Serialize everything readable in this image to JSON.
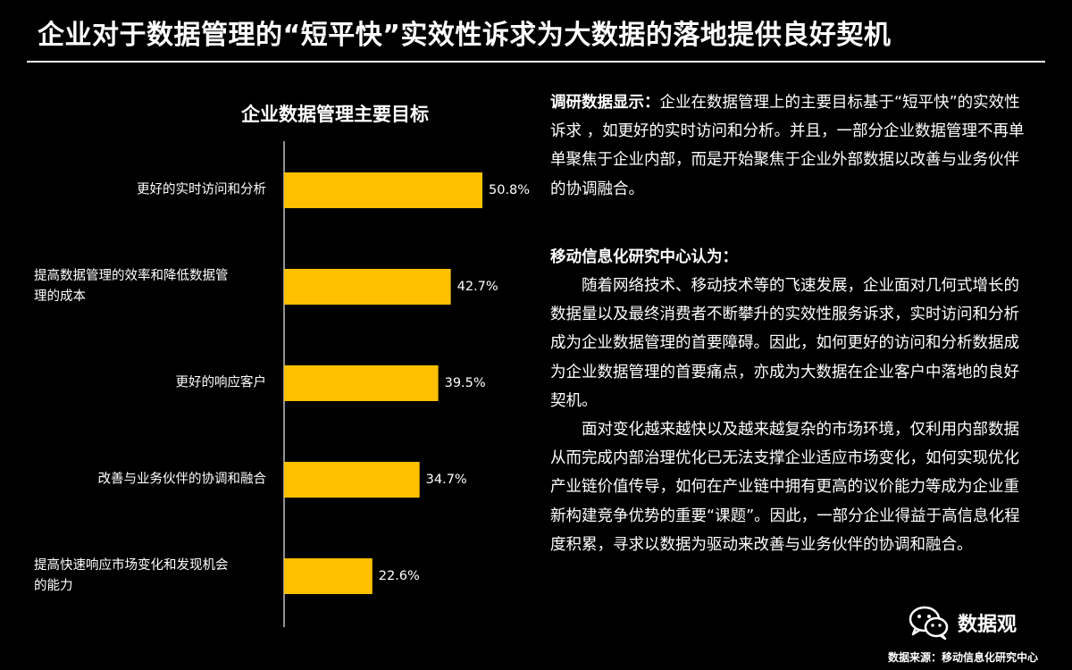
{
  "header": {
    "title": "企业对于数据管理的“短平快”实效性诉求为大数据的落地提供良好契机"
  },
  "chart_data": {
    "type": "bar",
    "orientation": "horizontal",
    "title": "企业数据管理主要目标",
    "categories": [
      "更好的实时访问和分析",
      "提高数据管理的效率和降低数据管理的成本",
      "更好的响应客户",
      "改善与业务伙伴的协调和融合",
      "提高快速响应市场变化和发现机会的能力"
    ],
    "category_lines": [
      [
        "更好的实时访问和分析"
      ],
      [
        "提高数据管理的效率和降低数据管",
        "理的成本"
      ],
      [
        "更好的响应客户"
      ],
      [
        "改善与业务伙伴的协调和融合"
      ],
      [
        "提高快速响应市场变化和发现机会",
        "的能力"
      ]
    ],
    "values": [
      50.8,
      42.7,
      39.5,
      34.7,
      22.6
    ],
    "value_labels": [
      "50.8%",
      "42.7%",
      "39.5%",
      "34.7%",
      "22.6%"
    ],
    "xlim": [
      0,
      100
    ],
    "grid": false,
    "bar_color": "#FFC000",
    "axis_color": "#BFBFBF"
  },
  "right_panel": {
    "para1_lead": "调研数据显示：",
    "para1_body": "企业在数据管理上的主要目标基于“短平快”的实效性诉求 ，如更好的实时访问和分析。并且，一部分企业数据管理不再单单聚焦于企业内部，而是开始聚焦于企业外部数据以改善与业务伙伴的协调融合。",
    "heading2": "移动信息化研究中心认为：",
    "para2": "随着网络技术、移动技术等的飞速发展，企业面对几何式增长的数据量以及最终消费者不断攀升的实效性服务诉求，实时访问和分析成为企业数据管理的首要障碍。因此，如何更好的访问和分析数据成为企业数据管理的首要痛点，亦成为大数据在企业客户中落地的良好契机。",
    "para3": "面对变化越来越快以及越来越复杂的市场环境，仅利用内部数据从而完成内部治理优化已无法支撑企业适应市场变化，如何实现优化产业链价值传导，如何在产业链中拥有更高的议价能力等成为企业重新构建竞争优势的重要“课题”。因此，一部分企业得益于高信息化程度积累，寻求以数据为驱动来改善与业务伙伴的协调和融合。"
  },
  "footer": {
    "source": "数据来源：移动信息化研究中心",
    "watermark": "数据观",
    "watermark_icon": "wechat-icon"
  }
}
